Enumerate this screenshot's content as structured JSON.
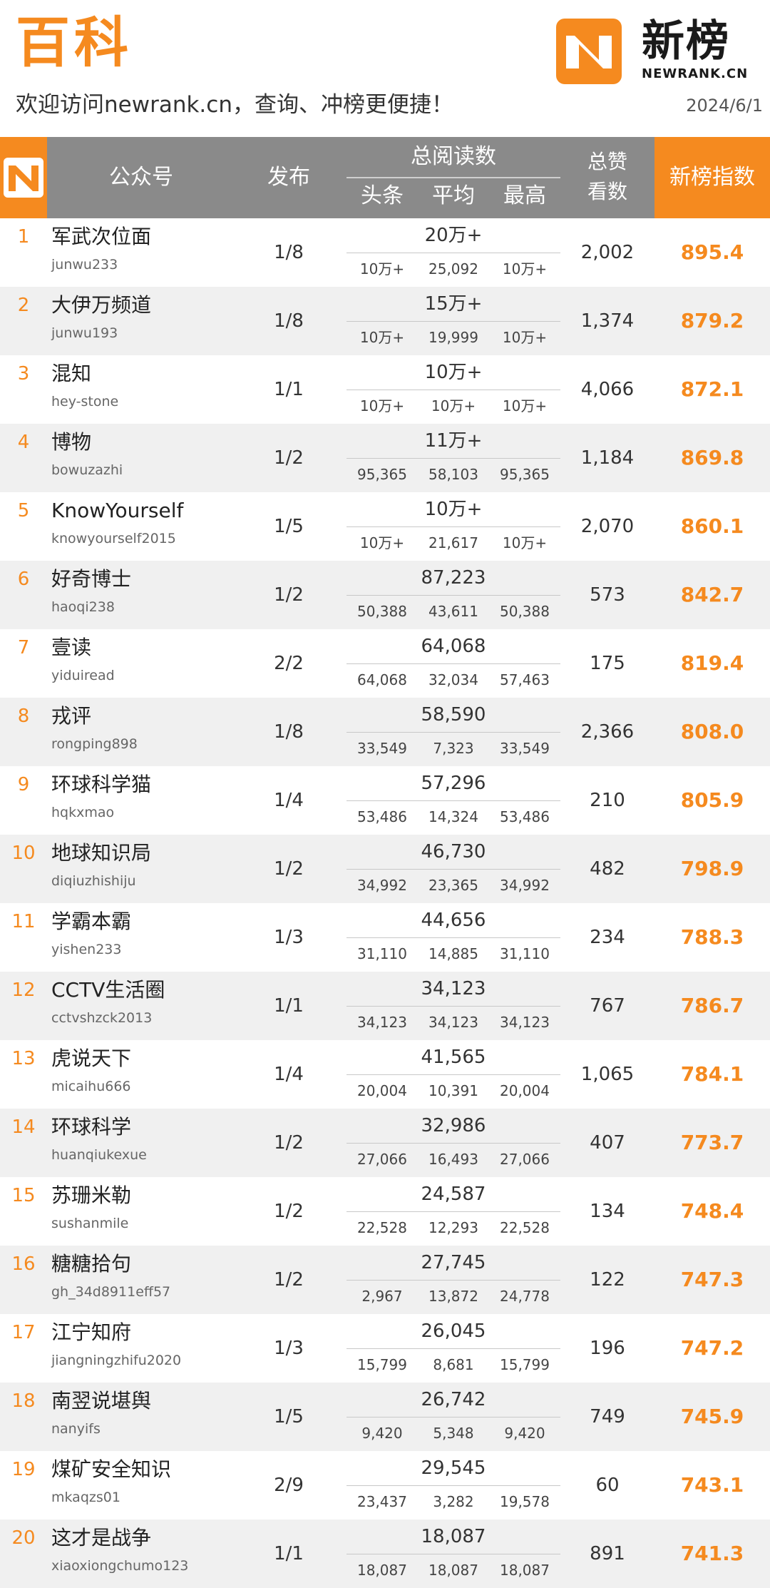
{
  "header": {
    "title": "百科",
    "subtitle": "欢迎访问newrank.cn，查询、冲榜更便捷！",
    "date": "2024/6/1",
    "logo_text": "新榜",
    "logo_sub": "NEWRANK.CN"
  },
  "colors": {
    "accent": "#f58a1f",
    "header_gray": "#8a8a8a",
    "row_alt": "#f0f0f0"
  },
  "columns": {
    "account": "公众号",
    "publish": "发布",
    "total_reads": "总阅读数",
    "headline": "头条",
    "average": "平均",
    "max": "最高",
    "likes_line1": "总赞",
    "likes_line2": "看数",
    "index": "新榜指数"
  },
  "rows": [
    {
      "rank": "1",
      "name": "军武次位面",
      "account": "junwu233",
      "publish": "1/8",
      "total": "20万+",
      "head": "10万+",
      "avg": "25,092",
      "max": "10万+",
      "likes": "2,002",
      "index": "895.4"
    },
    {
      "rank": "2",
      "name": "大伊万频道",
      "account": "junwu193",
      "publish": "1/8",
      "total": "15万+",
      "head": "10万+",
      "avg": "19,999",
      "max": "10万+",
      "likes": "1,374",
      "index": "879.2"
    },
    {
      "rank": "3",
      "name": "混知",
      "account": "hey-stone",
      "publish": "1/1",
      "total": "10万+",
      "head": "10万+",
      "avg": "10万+",
      "max": "10万+",
      "likes": "4,066",
      "index": "872.1"
    },
    {
      "rank": "4",
      "name": "博物",
      "account": "bowuzazhi",
      "publish": "1/2",
      "total": "11万+",
      "head": "95,365",
      "avg": "58,103",
      "max": "95,365",
      "likes": "1,184",
      "index": "869.8"
    },
    {
      "rank": "5",
      "name": "KnowYourself",
      "account": "knowyourself2015",
      "publish": "1/5",
      "total": "10万+",
      "head": "10万+",
      "avg": "21,617",
      "max": "10万+",
      "likes": "2,070",
      "index": "860.1"
    },
    {
      "rank": "6",
      "name": "好奇博士",
      "account": "haoqi238",
      "publish": "1/2",
      "total": "87,223",
      "head": "50,388",
      "avg": "43,611",
      "max": "50,388",
      "likes": "573",
      "index": "842.7"
    },
    {
      "rank": "7",
      "name": "壹读",
      "account": "yiduiread",
      "publish": "2/2",
      "total": "64,068",
      "head": "64,068",
      "avg": "32,034",
      "max": "57,463",
      "likes": "175",
      "index": "819.4"
    },
    {
      "rank": "8",
      "name": "戎评",
      "account": "rongping898",
      "publish": "1/8",
      "total": "58,590",
      "head": "33,549",
      "avg": "7,323",
      "max": "33,549",
      "likes": "2,366",
      "index": "808.0"
    },
    {
      "rank": "9",
      "name": "环球科学猫",
      "account": "hqkxmao",
      "publish": "1/4",
      "total": "57,296",
      "head": "53,486",
      "avg": "14,324",
      "max": "53,486",
      "likes": "210",
      "index": "805.9"
    },
    {
      "rank": "10",
      "name": "地球知识局",
      "account": "diqiuzhishiju",
      "publish": "1/2",
      "total": "46,730",
      "head": "34,992",
      "avg": "23,365",
      "max": "34,992",
      "likes": "482",
      "index": "798.9"
    },
    {
      "rank": "11",
      "name": "学霸本霸",
      "account": "yishen233",
      "publish": "1/3",
      "total": "44,656",
      "head": "31,110",
      "avg": "14,885",
      "max": "31,110",
      "likes": "234",
      "index": "788.3"
    },
    {
      "rank": "12",
      "name": "CCTV生活圈",
      "account": "cctvshzck2013",
      "publish": "1/1",
      "total": "34,123",
      "head": "34,123",
      "avg": "34,123",
      "max": "34,123",
      "likes": "767",
      "index": "786.7"
    },
    {
      "rank": "13",
      "name": "虎说天下",
      "account": "micaihu666",
      "publish": "1/4",
      "total": "41,565",
      "head": "20,004",
      "avg": "10,391",
      "max": "20,004",
      "likes": "1,065",
      "index": "784.1"
    },
    {
      "rank": "14",
      "name": "环球科学",
      "account": "huanqiukexue",
      "publish": "1/2",
      "total": "32,986",
      "head": "27,066",
      "avg": "16,493",
      "max": "27,066",
      "likes": "407",
      "index": "773.7"
    },
    {
      "rank": "15",
      "name": "苏珊米勒",
      "account": "sushanmile",
      "publish": "1/2",
      "total": "24,587",
      "head": "22,528",
      "avg": "12,293",
      "max": "22,528",
      "likes": "134",
      "index": "748.4"
    },
    {
      "rank": "16",
      "name": "糖糖拾句",
      "account": "gh_34d8911eff57",
      "publish": "1/2",
      "total": "27,745",
      "head": "2,967",
      "avg": "13,872",
      "max": "24,778",
      "likes": "122",
      "index": "747.3"
    },
    {
      "rank": "17",
      "name": "江宁知府",
      "account": "jiangningzhifu2020",
      "publish": "1/3",
      "total": "26,045",
      "head": "15,799",
      "avg": "8,681",
      "max": "15,799",
      "likes": "196",
      "index": "747.2"
    },
    {
      "rank": "18",
      "name": "南翌说堪舆",
      "account": "nanyifs",
      "publish": "1/5",
      "total": "26,742",
      "head": "9,420",
      "avg": "5,348",
      "max": "9,420",
      "likes": "749",
      "index": "745.9"
    },
    {
      "rank": "19",
      "name": "煤矿安全知识",
      "account": "mkaqzs01",
      "publish": "2/9",
      "total": "29,545",
      "head": "23,437",
      "avg": "3,282",
      "max": "19,578",
      "likes": "60",
      "index": "743.1"
    },
    {
      "rank": "20",
      "name": "这才是战争",
      "account": "xiaoxiongchumo123",
      "publish": "1/1",
      "total": "18,087",
      "head": "18,087",
      "avg": "18,087",
      "max": "18,087",
      "likes": "891",
      "index": "741.3"
    }
  ]
}
